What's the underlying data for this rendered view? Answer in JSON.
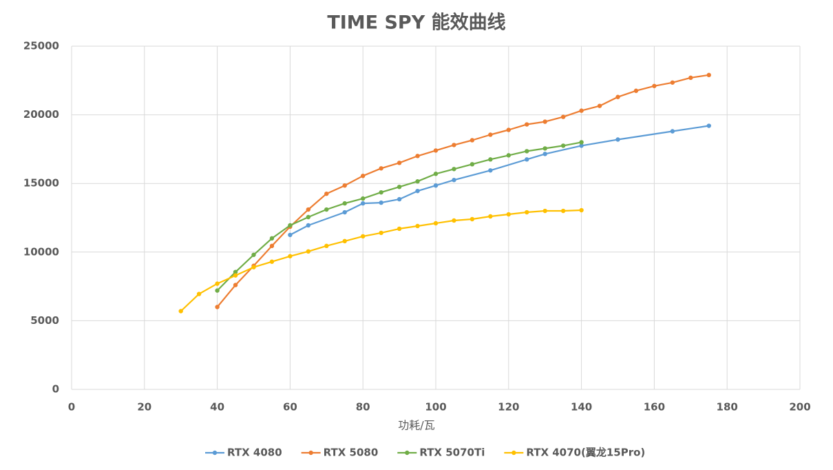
{
  "chart_data": {
    "type": "line",
    "title": "TIME SPY 能效曲线",
    "x_label": "功耗/瓦",
    "xlim": [
      0,
      200
    ],
    "xticks": [
      0,
      20,
      40,
      60,
      80,
      100,
      120,
      140,
      160,
      180,
      200
    ],
    "ylim": [
      0,
      25000
    ],
    "yticks": [
      0,
      5000,
      10000,
      15000,
      20000,
      25000
    ],
    "grid": true,
    "legend": "bottom",
    "series": [
      {
        "name": "RTX 4080",
        "color": "#5b9bd5",
        "x": [
          60,
          65,
          75,
          80,
          85,
          90,
          95,
          100,
          105,
          115,
          125,
          130,
          140,
          150,
          165,
          175
        ],
        "values": [
          11250,
          11950,
          12900,
          13550,
          13600,
          13850,
          14450,
          14850,
          15250,
          15950,
          16750,
          17150,
          17750,
          18200,
          18800,
          19200
        ]
      },
      {
        "name": "RTX 5080",
        "color": "#ed7d31",
        "x": [
          40,
          45,
          50,
          55,
          60,
          65,
          70,
          75,
          80,
          85,
          90,
          95,
          100,
          105,
          110,
          115,
          120,
          125,
          130,
          135,
          140,
          145,
          150,
          155,
          160,
          165,
          170,
          175
        ],
        "values": [
          6000,
          7600,
          9000,
          10450,
          11850,
          13100,
          14250,
          14850,
          15550,
          16100,
          16500,
          17000,
          17400,
          17800,
          18150,
          18550,
          18900,
          19300,
          19500,
          19850,
          20300,
          20650,
          21300,
          21750,
          22100,
          22350,
          22700,
          22900
        ]
      },
      {
        "name": "RTX 5070Ti",
        "color": "#70ad47",
        "x": [
          40,
          45,
          50,
          55,
          60,
          65,
          70,
          75,
          80,
          85,
          90,
          95,
          100,
          105,
          110,
          115,
          120,
          125,
          130,
          135,
          140
        ],
        "values": [
          7200,
          8550,
          9800,
          11000,
          11950,
          12550,
          13100,
          13550,
          13900,
          14350,
          14750,
          15150,
          15700,
          16050,
          16400,
          16750,
          17050,
          17350,
          17550,
          17750,
          18000
        ]
      },
      {
        "name": "RTX 4070(翼龙15Pro)",
        "color": "#ffc000",
        "x": [
          30,
          35,
          40,
          45,
          50,
          55,
          60,
          65,
          70,
          75,
          80,
          85,
          90,
          95,
          100,
          105,
          110,
          115,
          120,
          125,
          130,
          135,
          140
        ],
        "values": [
          5700,
          6950,
          7700,
          8300,
          8900,
          9300,
          9700,
          10050,
          10450,
          10800,
          11150,
          11400,
          11700,
          11900,
          12100,
          12300,
          12400,
          12600,
          12750,
          12900,
          13000,
          13000,
          13050
        ]
      }
    ]
  }
}
